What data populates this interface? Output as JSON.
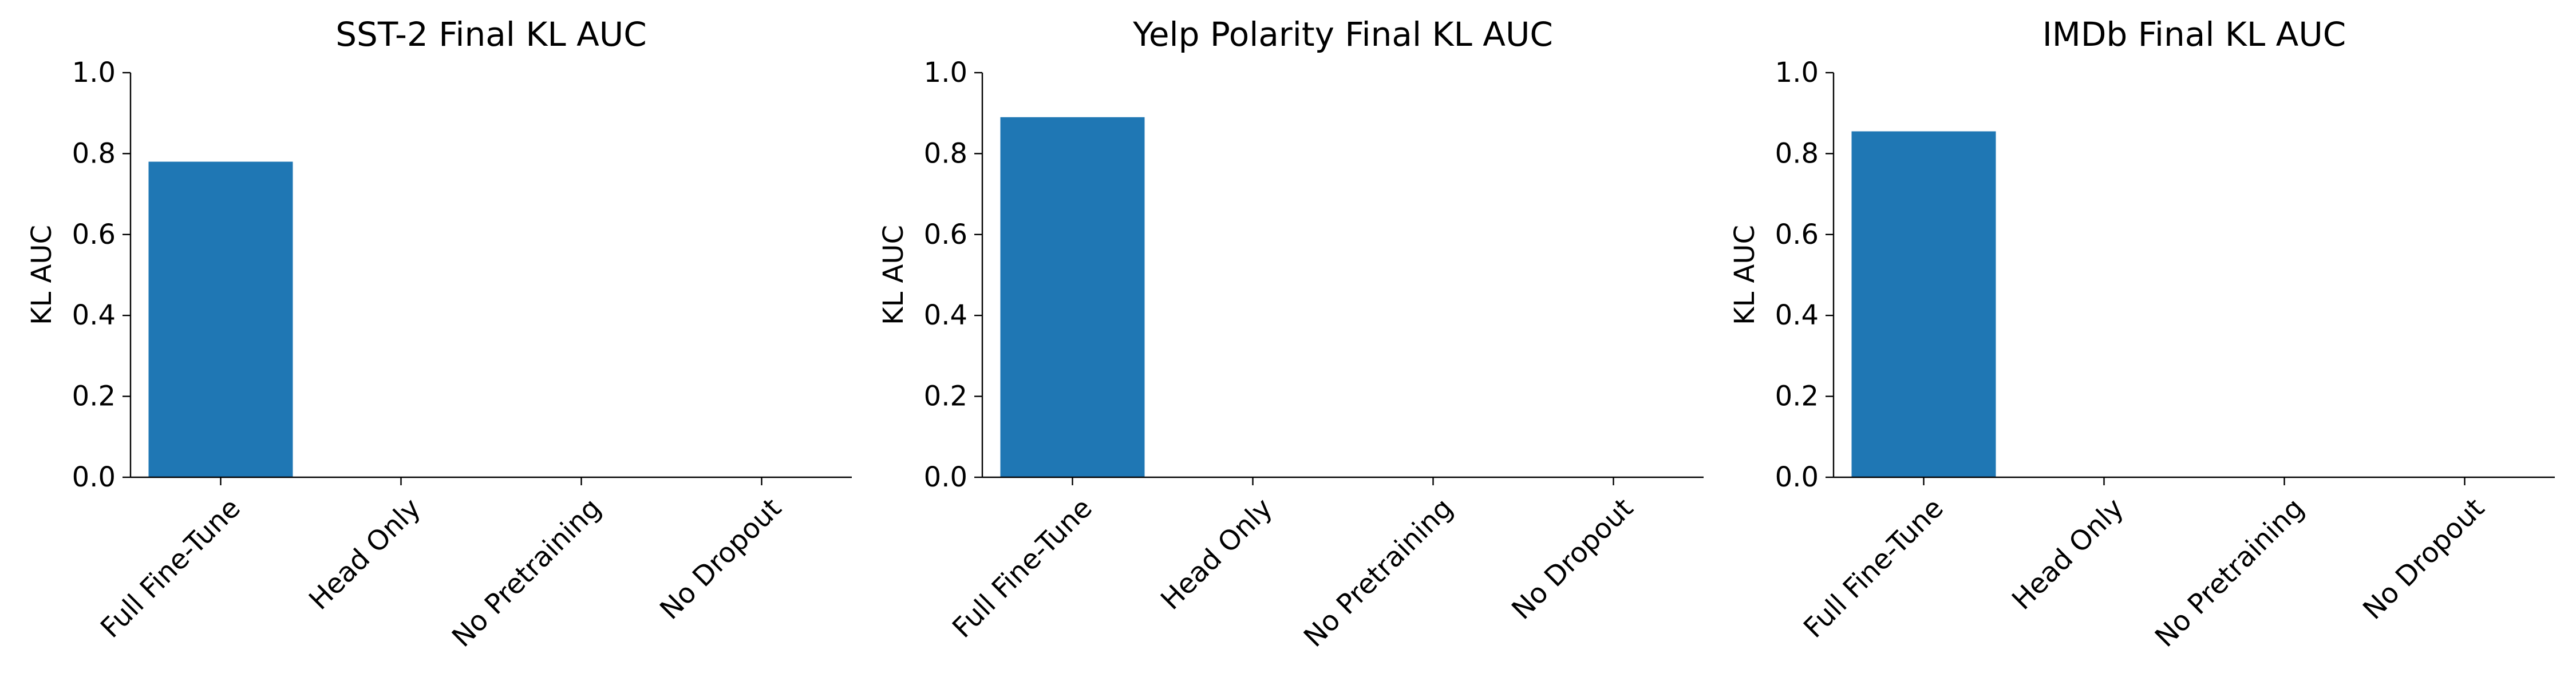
{
  "chart_data": [
    {
      "type": "bar",
      "title": "SST-2 Final KL AUC",
      "xlabel": "",
      "ylabel": "KL AUC",
      "categories": [
        "Full Fine-Tune",
        "Head Only",
        "No Pretraining",
        "No Dropout"
      ],
      "values": [
        0.78,
        0,
        0,
        0
      ],
      "ylim": [
        0,
        1
      ],
      "yticks": [
        "0.0",
        "0.2",
        "0.4",
        "0.6",
        "0.8",
        "1.0"
      ],
      "grid": false,
      "bar_color": "#1f77b4"
    },
    {
      "type": "bar",
      "title": "Yelp Polarity Final KL AUC",
      "xlabel": "",
      "ylabel": "KL AUC",
      "categories": [
        "Full Fine-Tune",
        "Head Only",
        "No Pretraining",
        "No Dropout"
      ],
      "values": [
        0.89,
        0,
        0,
        0
      ],
      "ylim": [
        0,
        1
      ],
      "yticks": [
        "0.0",
        "0.2",
        "0.4",
        "0.6",
        "0.8",
        "1.0"
      ],
      "grid": false,
      "bar_color": "#1f77b4"
    },
    {
      "type": "bar",
      "title": "IMDb Final KL AUC",
      "xlabel": "",
      "ylabel": "KL AUC",
      "categories": [
        "Full Fine-Tune",
        "Head Only",
        "No Pretraining",
        "No Dropout"
      ],
      "values": [
        0.855,
        0,
        0,
        0
      ],
      "ylim": [
        0,
        1
      ],
      "yticks": [
        "0.0",
        "0.2",
        "0.4",
        "0.6",
        "0.8",
        "1.0"
      ],
      "grid": false,
      "bar_color": "#1f77b4"
    }
  ]
}
